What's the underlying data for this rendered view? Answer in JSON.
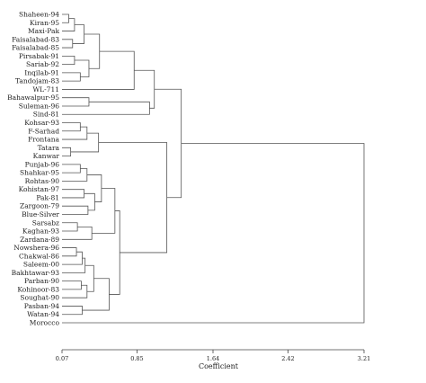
{
  "chart_data": {
    "type": "dendrogram",
    "leaves": [
      "Shaheen-94",
      "Kiran-95",
      "Maxi-Pak",
      "Faisalabad-83",
      "Faisalabad-85",
      "Pirsabak-91",
      "Sariab-92",
      "Inqilab-91",
      "Tandojam-83",
      "WL-711",
      "Bahawalpur-95",
      "Suleman-96",
      "Sind-81",
      "Kohsar-93",
      "F-Sarhad",
      "Frontana",
      "Tatara",
      "Kanwar",
      "Punjab-96",
      "Shahkar-95",
      "Rohtas-90",
      "Kohistan-97",
      "Pak-81",
      "Zargoon-79",
      "Blue-Silver",
      "Sarsabz",
      "Kaghan-93",
      "Zardana-89",
      "Nowshera-96",
      "Chakwal-86",
      "Saleem-00",
      "Bakhtawar-93",
      "Parban-90",
      "Kohinoor-83",
      "Soughat-90",
      "Pasban-94",
      "Watan-94",
      "Morocco"
    ],
    "xlabel": "Coefficient",
    "tick_labels": [
      "0.07",
      "0.85",
      "1.64",
      "2.42",
      "3.21"
    ],
    "xlim": [
      0.07,
      3.21
    ],
    "merges": [
      {
        "a": "L0",
        "b": "L1",
        "h": 0.14
      },
      {
        "a": "N0",
        "b": "L2",
        "h": 0.2
      },
      {
        "a": "L3",
        "b": "L4",
        "h": 0.18
      },
      {
        "a": "N1",
        "b": "N2",
        "h": 0.3
      },
      {
        "a": "L5",
        "b": "L6",
        "h": 0.2
      },
      {
        "a": "L7",
        "b": "L8",
        "h": 0.26
      },
      {
        "a": "N4",
        "b": "N5",
        "h": 0.35
      },
      {
        "a": "N3",
        "b": "N6",
        "h": 0.46
      },
      {
        "a": "N7",
        "b": "L9",
        "h": 0.82
      },
      {
        "a": "L10",
        "b": "L11",
        "h": 0.35
      },
      {
        "a": "N9",
        "b": "L12",
        "h": 0.98
      },
      {
        "a": "N8",
        "b": "N10",
        "h": 1.03
      },
      {
        "a": "L13",
        "b": "L14",
        "h": 0.26
      },
      {
        "a": "N12",
        "b": "L15",
        "h": 0.33
      },
      {
        "a": "L16",
        "b": "L17",
        "h": 0.16
      },
      {
        "a": "N13",
        "b": "N14",
        "h": 0.45
      },
      {
        "a": "L18",
        "b": "L19",
        "h": 0.26
      },
      {
        "a": "N16",
        "b": "L20",
        "h": 0.33
      },
      {
        "a": "L21",
        "b": "L22",
        "h": 0.3
      },
      {
        "a": "L23",
        "b": "L24",
        "h": 0.34
      },
      {
        "a": "N18",
        "b": "N19",
        "h": 0.41
      },
      {
        "a": "N17",
        "b": "N20",
        "h": 0.48
      },
      {
        "a": "L25",
        "b": "L26",
        "h": 0.23
      },
      {
        "a": "N22",
        "b": "L27",
        "h": 0.38
      },
      {
        "a": "N21",
        "b": "N23",
        "h": 0.62
      },
      {
        "a": "L28",
        "b": "L29",
        "h": 0.22
      },
      {
        "a": "N25",
        "b": "L30",
        "h": 0.28
      },
      {
        "a": "N26",
        "b": "L31",
        "h": 0.31
      },
      {
        "a": "L32",
        "b": "L33",
        "h": 0.27
      },
      {
        "a": "N28",
        "b": "L34",
        "h": 0.33
      },
      {
        "a": "N27",
        "b": "N29",
        "h": 0.4
      },
      {
        "a": "L35",
        "b": "L36",
        "h": 0.28
      },
      {
        "a": "N30",
        "b": "N31",
        "h": 0.56
      },
      {
        "a": "N24",
        "b": "N32",
        "h": 0.67
      },
      {
        "a": "N15",
        "b": "N33",
        "h": 1.16
      },
      {
        "a": "N11",
        "b": "N34",
        "h": 1.31
      },
      {
        "a": "N35",
        "b": "L37",
        "h": 3.21
      }
    ]
  }
}
